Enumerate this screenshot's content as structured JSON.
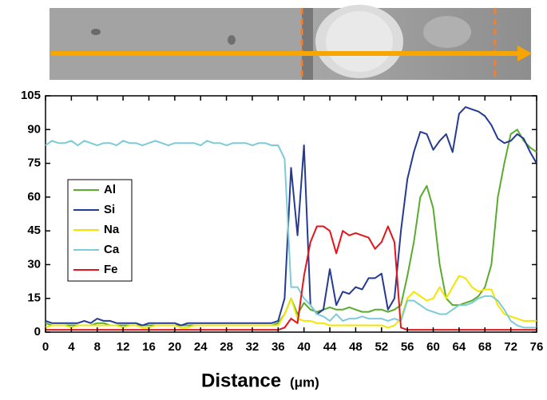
{
  "chart_data": {
    "type": "line",
    "x_label": "Distance",
    "x_label_unit": "(μm)",
    "x": [
      0,
      1,
      2,
      3,
      4,
      5,
      6,
      7,
      8,
      9,
      10,
      11,
      12,
      13,
      14,
      15,
      16,
      17,
      18,
      19,
      20,
      21,
      22,
      23,
      24,
      25,
      26,
      27,
      28,
      29,
      30,
      31,
      32,
      33,
      34,
      35,
      36,
      37,
      38,
      39,
      40,
      41,
      42,
      43,
      44,
      45,
      46,
      47,
      48,
      49,
      50,
      51,
      52,
      53,
      54,
      55,
      56,
      57,
      58,
      59,
      60,
      61,
      62,
      63,
      64,
      65,
      66,
      67,
      68,
      69,
      70,
      71,
      72,
      73,
      74,
      75,
      76
    ],
    "xlim": [
      0,
      76
    ],
    "xticks": [
      0,
      4,
      8,
      12,
      16,
      20,
      24,
      28,
      32,
      36,
      40,
      44,
      48,
      52,
      56,
      60,
      64,
      68,
      72,
      76
    ],
    "ylim": [
      0,
      105
    ],
    "yticks": [
      0,
      15,
      30,
      45,
      60,
      75,
      90,
      105
    ],
    "legend": "left",
    "series": [
      {
        "name": "Al",
        "color": "#5aab2e",
        "values": [
          4,
          3,
          3,
          3,
          3,
          3,
          3,
          3,
          4,
          4,
          3,
          3,
          3,
          3,
          3,
          3,
          3,
          3,
          3,
          3,
          3,
          3,
          3,
          3,
          3,
          3,
          3,
          3,
          3,
          3,
          3,
          3,
          3,
          3,
          3,
          3,
          4,
          8,
          15,
          8,
          13,
          10,
          9,
          10,
          11,
          10,
          10,
          11,
          10,
          9,
          9,
          10,
          10,
          9,
          10,
          12,
          25,
          40,
          60,
          65,
          55,
          30,
          15,
          12,
          12,
          13,
          14,
          16,
          20,
          30,
          60,
          75,
          88,
          90,
          85,
          82,
          80
        ]
      },
      {
        "name": "Si",
        "color": "#243a93",
        "values": [
          5,
          4,
          4,
          4,
          4,
          4,
          5,
          4,
          6,
          5,
          5,
          4,
          4,
          4,
          4,
          3,
          4,
          4,
          4,
          4,
          4,
          3,
          4,
          4,
          4,
          4,
          4,
          4,
          4,
          4,
          4,
          4,
          4,
          4,
          4,
          4,
          5,
          15,
          73,
          43,
          83,
          12,
          8,
          10,
          28,
          12,
          18,
          17,
          20,
          19,
          24,
          24,
          26,
          10,
          15,
          45,
          68,
          80,
          89,
          88,
          81,
          85,
          88,
          80,
          97,
          100,
          99,
          98,
          96,
          92,
          86,
          84,
          85,
          88,
          86,
          80,
          75
        ]
      },
      {
        "name": "Na",
        "color": "#f2e600",
        "values": [
          2,
          3,
          3,
          3,
          2,
          3,
          3,
          3,
          3,
          3,
          3,
          3,
          2,
          3,
          3,
          2,
          2,
          3,
          3,
          3,
          3,
          2,
          2,
          3,
          3,
          3,
          3,
          3,
          3,
          3,
          3,
          3,
          3,
          3,
          3,
          3,
          3,
          8,
          15,
          6,
          5,
          5,
          4,
          4,
          3,
          3,
          3,
          3,
          3,
          3,
          3,
          3,
          3,
          2,
          3,
          6,
          15,
          18,
          16,
          14,
          15,
          20,
          15,
          20,
          25,
          24,
          20,
          18,
          19,
          19,
          12,
          8,
          7,
          6,
          5,
          5,
          5
        ]
      },
      {
        "name": "Ca",
        "color": "#7ccbd9",
        "values": [
          83,
          85,
          84,
          84,
          85,
          83,
          85,
          84,
          83,
          84,
          84,
          83,
          85,
          84,
          84,
          83,
          84,
          85,
          84,
          83,
          84,
          84,
          84,
          84,
          83,
          85,
          84,
          84,
          83,
          84,
          84,
          84,
          83,
          84,
          84,
          83,
          83,
          77,
          20,
          20,
          15,
          12,
          8,
          7,
          5,
          8,
          5,
          6,
          6,
          7,
          6,
          6,
          6,
          5,
          6,
          5,
          14,
          14,
          12,
          10,
          9,
          8,
          8,
          10,
          12,
          12,
          13,
          15,
          16,
          16,
          14,
          10,
          5,
          3,
          2,
          2,
          2
        ]
      },
      {
        "name": "Fe",
        "color": "#e3141b",
        "values": [
          1,
          1,
          1,
          1,
          1,
          1,
          1,
          1,
          1,
          1,
          1,
          1,
          1,
          1,
          1,
          1,
          1,
          1,
          1,
          1,
          1,
          1,
          1,
          1,
          1,
          1,
          1,
          1,
          1,
          1,
          1,
          1,
          1,
          1,
          1,
          1,
          1,
          2,
          6,
          4,
          25,
          40,
          47,
          47,
          45,
          35,
          45,
          43,
          44,
          43,
          42,
          37,
          40,
          47,
          40,
          2,
          1,
          1,
          1,
          1,
          1,
          1,
          1,
          1,
          1,
          1,
          1,
          1,
          1,
          1,
          1,
          1,
          1,
          1,
          1,
          1,
          1
        ]
      }
    ]
  }
}
